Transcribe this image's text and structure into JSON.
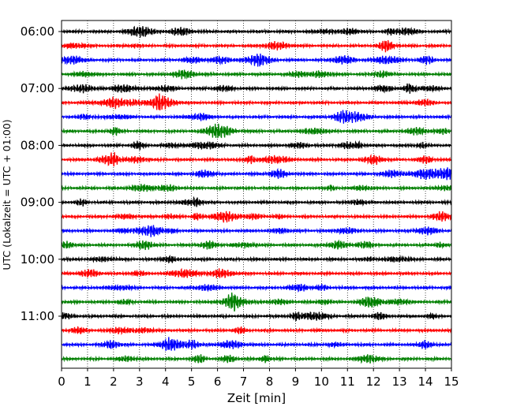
{
  "chart_data": {
    "type": "line",
    "subtype": "helicorder-seismogram",
    "xlabel": "Zeit  [min]",
    "ylabel": "UTC (Lokalzeit = UTC + 01:00)",
    "xlim": [
      0,
      15
    ],
    "x_ticks": [
      "0",
      "1",
      "2",
      "3",
      "4",
      "5",
      "6",
      "7",
      "8",
      "9",
      "10",
      "11",
      "12",
      "13",
      "14",
      "15"
    ],
    "grid": "vertical dotted at each minute",
    "trace_colors": [
      "#000000",
      "#ff0000",
      "#0000ff",
      "#008000"
    ],
    "traces_per_row": 4,
    "trace_count": 24,
    "trace_duration_min": 15,
    "start_time": "06:00",
    "y_tick_labels": [
      "06:00",
      "07:00",
      "08:00",
      "09:00",
      "10:00",
      "11:00"
    ]
  }
}
